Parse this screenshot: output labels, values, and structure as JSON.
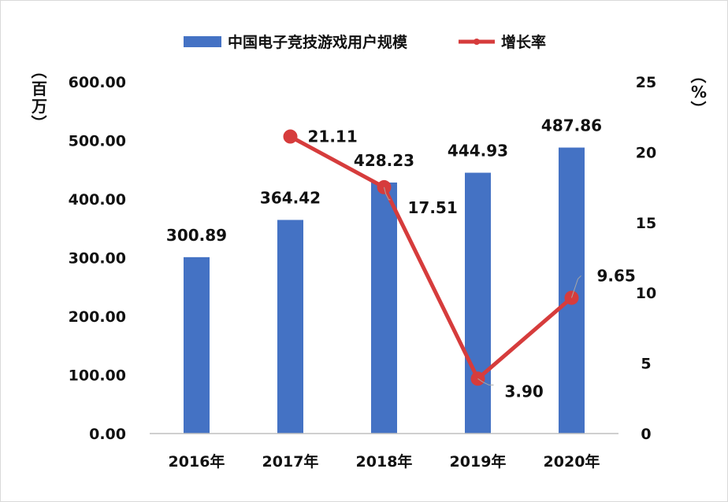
{
  "chart_data": {
    "type": "bar+line",
    "categories": [
      "2016年",
      "2017年",
      "2018年",
      "2019年",
      "2020年"
    ],
    "series": [
      {
        "name": "中国电子竞技游戏用户规模",
        "type": "bar",
        "axis": "left",
        "values": [
          300.89,
          364.42,
          428.23,
          444.93,
          487.86
        ],
        "labels": [
          "300.89",
          "364.42",
          "428.23",
          "444.93",
          "487.86"
        ],
        "color": "#4472C4"
      },
      {
        "name": "增长率",
        "type": "line",
        "axis": "right",
        "values": [
          null,
          21.11,
          17.51,
          3.9,
          9.65
        ],
        "labels": [
          "",
          "21.11",
          "17.51",
          "3.90",
          "9.65"
        ],
        "color": "#D63C3C"
      }
    ],
    "y_left": {
      "label": "（百万）",
      "label_chars": [
        "（",
        "百",
        "万",
        "）"
      ],
      "range": [
        0,
        600
      ],
      "ticks": [
        "0.00",
        "100.00",
        "200.00",
        "300.00",
        "400.00",
        "500.00",
        "600.00"
      ]
    },
    "y_right": {
      "label": "（%）",
      "label_chars": [
        "（",
        "%",
        "）"
      ],
      "range": [
        0,
        25
      ],
      "ticks": [
        "0",
        "5",
        "10",
        "15",
        "20",
        "25"
      ]
    },
    "legend_position": "top-center",
    "grid": false
  }
}
